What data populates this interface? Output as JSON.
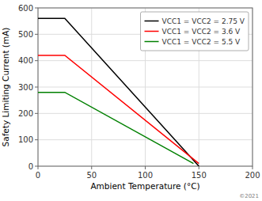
{
  "chart_data": {
    "type": "line",
    "title": "",
    "xlabel": "Ambient Temperature (°C)",
    "ylabel": "Safety Limiting Current (mA)",
    "xlim": [
      0,
      200
    ],
    "ylim": [
      0,
      600
    ],
    "xticks": [
      0,
      50,
      100,
      150,
      200
    ],
    "yticks": [
      0,
      100,
      200,
      300,
      400,
      500,
      600
    ],
    "grid": true,
    "legend": "upper right",
    "series": [
      {
        "name": "VCC1 = VCC2 = 2.75 V",
        "color": "#000000",
        "x": [
          0,
          25,
          150
        ],
        "values": [
          560,
          560,
          0
        ]
      },
      {
        "name": "VCC1 = VCC2 = 3.6 V",
        "color": "#ff0000",
        "x": [
          0,
          25,
          150
        ],
        "values": [
          420,
          420,
          10
        ]
      },
      {
        "name": "VCC1 = VCC2 = 5.5 V",
        "color": "#008000",
        "x": [
          0,
          25,
          145
        ],
        "values": [
          280,
          280,
          10
        ]
      }
    ],
    "annotations": [
      "©2021"
    ]
  }
}
